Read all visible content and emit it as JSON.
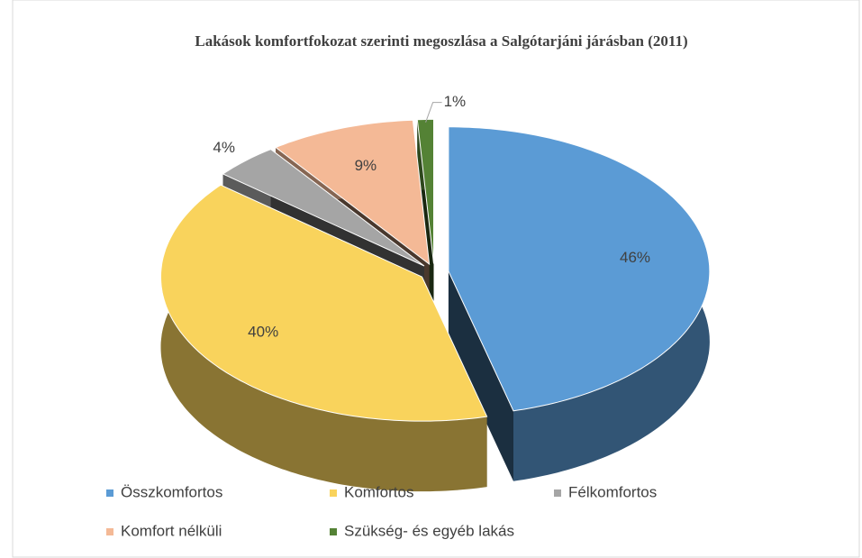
{
  "chart_data": {
    "type": "pie3d",
    "title": "Lakások komfortfokozat szerinti megoszlása a Salgótarjáni járásban (2011)",
    "categories": [
      "Összkomfortos",
      "Komfortos",
      "Félkomfortos",
      "Komfort nélküli",
      "Szükség- és egyéb lakás"
    ],
    "values": [
      46,
      40,
      4,
      9,
      1
    ],
    "value_labels": [
      "46%",
      "40%",
      "4%",
      "9%",
      "1%"
    ],
    "colors": [
      "#5b9bd5",
      "#f9d35c",
      "#a5a5a5",
      "#f4b996",
      "#548235"
    ],
    "legend": "bottom"
  }
}
